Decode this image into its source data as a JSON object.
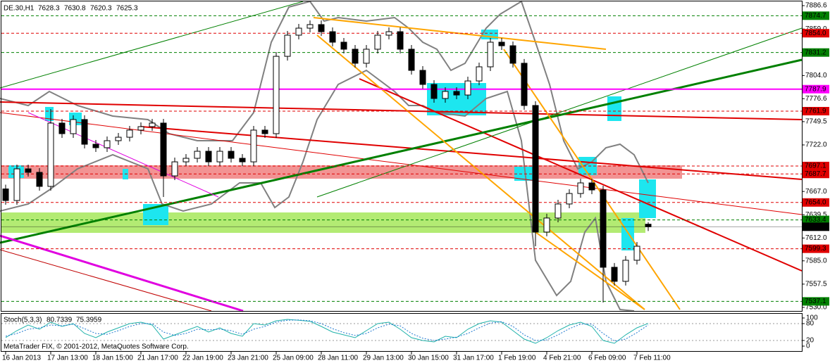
{
  "footer": "MetaTrader FIX, © 2001-2012, MetaQuotes Software Corp.",
  "chart_data": [
    {
      "type": "candlestick",
      "title": "DE.30,H1",
      "categories": [
        "16 Jan 2013",
        null,
        null,
        null,
        "17 Jan 13:00",
        null,
        null,
        null,
        "18 Jan 15:00",
        null,
        null,
        null,
        "21 Jan 17:00",
        null,
        null,
        null,
        "22 Jan 19:00",
        null,
        null,
        null,
        "23 Jan 21:00",
        null,
        null,
        null,
        "25 Jan 09:00",
        null,
        null,
        null,
        "28 Jan 11:00",
        null,
        null,
        null,
        "29 Jan 13:00",
        null,
        null,
        null,
        "30 Jan 15:00",
        null,
        null,
        null,
        "31 Jan 17:00",
        null,
        null,
        null,
        "1 Feb 19:00",
        null,
        null,
        null,
        "4 Feb 21:00",
        null,
        null,
        null,
        "6 Feb 09:00",
        null,
        null,
        null,
        "7 Feb 11:00",
        null
      ],
      "open": [
        7670.0,
        7656.3,
        7693.7,
        7689.6,
        7673.0,
        7747.8,
        7735.3,
        7752.0,
        7722.8,
        7718.7,
        7727.0,
        7731.1,
        7739.5,
        7743.6,
        7747.8,
        7685.4,
        7702.0,
        7706.2,
        7714.5,
        7702.0,
        7714.5,
        7706.2,
        7702.0,
        7739.5,
        7735.3,
        7826.7,
        7851.7,
        7860.0,
        7864.2,
        7855.8,
        7843.4,
        7835.1,
        7818.5,
        7835.1,
        7851.7,
        7855.8,
        7835.1,
        7810.1,
        7793.5,
        7776.9,
        7785.2,
        7781.0,
        7797.6,
        7814.3,
        7843.4,
        7839.2,
        7818.5,
        7768.6,
        7619.0,
        7635.6,
        7652.2,
        7664.6,
        7677.1,
        7668.8,
        7577.4,
        7560.8,
        7585.7,
        7628.3
      ],
      "high": [
        7675.0,
        7698.7,
        7698.7,
        7694.6,
        7764.4,
        7752.8,
        7757.0,
        7757.0,
        7727.8,
        7732.0,
        7736.1,
        7744.5,
        7748.6,
        7752.8,
        7752.8,
        7707.0,
        7711.2,
        7719.5,
        7719.5,
        7719.5,
        7719.5,
        7711.2,
        7744.5,
        7744.5,
        7831.7,
        7856.7,
        7865.0,
        7869.2,
        7869.2,
        7860.8,
        7848.4,
        7840.1,
        7840.1,
        7856.7,
        7860.8,
        7860.8,
        7840.1,
        7815.1,
        7798.5,
        7790.2,
        7790.2,
        7802.6,
        7819.3,
        7848.4,
        7848.4,
        7844.2,
        7823.5,
        7773.6,
        7640.6,
        7657.2,
        7669.6,
        7682.1,
        7682.1,
        7673.8,
        7582.4,
        7590.7,
        7607.3,
        7630.8
      ],
      "low": [
        7651.3,
        7651.3,
        7684.6,
        7668.0,
        7668.0,
        7730.3,
        7730.3,
        7717.8,
        7713.7,
        7713.7,
        7722.0,
        7726.1,
        7734.5,
        7738.6,
        7660.5,
        7680.4,
        7697.0,
        7701.2,
        7697.0,
        7697.0,
        7701.2,
        7697.0,
        7697.0,
        7730.3,
        7730.3,
        7821.7,
        7846.7,
        7855.0,
        7850.8,
        7838.4,
        7830.1,
        7813.5,
        7813.5,
        7830.1,
        7846.7,
        7830.1,
        7805.1,
        7788.5,
        7771.9,
        7771.9,
        7776.0,
        7776.0,
        7792.6,
        7809.3,
        7834.2,
        7813.5,
        7763.6,
        7602.3,
        7614.0,
        7630.6,
        7647.2,
        7659.6,
        7663.8,
        7535.8,
        7555.8,
        7555.8,
        7580.7,
        7620.3
      ],
      "close": [
        7656.3,
        7693.7,
        7689.6,
        7673.0,
        7747.8,
        7735.3,
        7752.0,
        7722.8,
        7718.7,
        7727.0,
        7731.1,
        7739.5,
        7743.6,
        7747.8,
        7685.4,
        7702.0,
        7706.2,
        7714.5,
        7702.0,
        7714.5,
        7706.2,
        7702.0,
        7739.5,
        7735.3,
        7826.7,
        7851.7,
        7860.0,
        7864.2,
        7855.8,
        7843.4,
        7835.1,
        7818.5,
        7835.1,
        7851.7,
        7855.8,
        7835.1,
        7810.1,
        7793.5,
        7776.9,
        7785.2,
        7781.0,
        7797.6,
        7814.3,
        7843.4,
        7839.2,
        7818.5,
        7768.6,
        7619.0,
        7635.6,
        7652.2,
        7664.6,
        7677.1,
        7668.8,
        7577.4,
        7560.8,
        7585.7,
        7602.3,
        7625.3
      ],
      "up_color": "#ffffff",
      "down_color": "#000000",
      "ylim": [
        7525.8,
        7891.6
      ],
      "yticks": [
        7886.6,
        {
          "value": 7859.0,
          "label": "7859.0"
        },
        {
          "value": 7804.0,
          "label": "7804.0"
        },
        7776.6,
        7749.5,
        {
          "value": 7722.0,
          "label": "7722.0"
        },
        {
          "value": 7667.0,
          "label": "7667.0"
        },
        7639.5,
        {
          "value": 7612.0,
          "label": "7612.0"
        },
        {
          "value": 7585.0,
          "label": "7585.0"
        },
        7557.5,
        {
          "value": 7530.0,
          "label": "7530.0"
        }
      ],
      "levels": [
        {
          "value": 7874.7,
          "color": "#008000",
          "line": "dashed"
        },
        {
          "value": 7854.0,
          "label": "7854.0",
          "color": "#e00000",
          "line": "dashed"
        },
        {
          "value": 7831.2,
          "color": "#008000",
          "line": "dashed"
        },
        {
          "value": 7787.9,
          "color": "#ff00ff",
          "line": "solid"
        },
        {
          "value": 7761.9,
          "color": "#e00000",
          "line": "dashed"
        },
        {
          "value": 7697.1,
          "color": "#e00000",
          "line": "dashed"
        },
        {
          "value": 7687.7,
          "color": "#e00000",
          "line": "dashed"
        },
        {
          "value": 7654.0,
          "label": "7654.0",
          "color": "#e00000",
          "line": "dashed"
        },
        {
          "value": 7633.4,
          "color": "#008000",
          "line": "dashed"
        },
        {
          "value": 7625.3,
          "color": "#000000",
          "line": "solid"
        },
        {
          "value": 7599.3,
          "color": "#e00000",
          "line": "dashed"
        },
        {
          "value": 7537.1,
          "color": "#008000",
          "line": "dashed"
        }
      ]
    },
    {
      "type": "line",
      "title": "Stoch(5,3,3)",
      "series": [
        {
          "color": "#20b2aa",
          "values": [
            30,
            55,
            75,
            60,
            85,
            70,
            80,
            45,
            30,
            50,
            65,
            80,
            85,
            75,
            25,
            40,
            55,
            70,
            50,
            65,
            45,
            35,
            80,
            75,
            90,
            95,
            92,
            88,
            70,
            50,
            40,
            30,
            55,
            80,
            85,
            60,
            30,
            20,
            15,
            35,
            30,
            60,
            80,
            90,
            85,
            55,
            25,
            10,
            30,
            55,
            75,
            85,
            70,
            20,
            10,
            40,
            65,
            80.7339
          ]
        },
        {
          "color": "#1e78d0",
          "values": [
            35,
            45,
            60,
            65,
            75,
            72,
            78,
            62,
            45,
            42,
            55,
            70,
            80,
            80,
            50,
            38,
            45,
            60,
            58,
            60,
            55,
            42,
            60,
            70,
            85,
            92,
            93,
            90,
            80,
            62,
            48,
            38,
            45,
            65,
            78,
            72,
            45,
            28,
            20,
            25,
            32,
            45,
            65,
            82,
            87,
            70,
            40,
            20,
            22,
            40,
            62,
            78,
            78,
            45,
            18,
            25,
            48,
            75.3959
          ]
        }
      ],
      "ylim": [
        0,
        100
      ],
      "yticks": [
        0,
        20,
        80,
        100
      ]
    }
  ]
}
